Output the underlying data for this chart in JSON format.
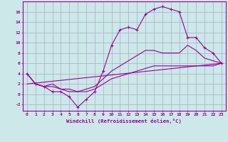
{
  "xlabel": "Windchill (Refroidissement éolien,°C)",
  "background_color": "#cce8e8",
  "grid_color": "#aaaacc",
  "line_color": "#990099",
  "xlim": [
    -0.5,
    23.5
  ],
  "ylim": [
    -3.2,
    18.0
  ],
  "xticks": [
    0,
    1,
    2,
    3,
    4,
    5,
    6,
    7,
    8,
    9,
    10,
    11,
    12,
    13,
    14,
    15,
    16,
    17,
    18,
    19,
    20,
    21,
    22,
    23
  ],
  "yticks": [
    -2,
    0,
    2,
    4,
    6,
    8,
    10,
    12,
    14,
    16
  ],
  "curve1_x": [
    0,
    1,
    2,
    3,
    4,
    5,
    6,
    7,
    8,
    9,
    10,
    11,
    12,
    13,
    14,
    15,
    16,
    17,
    18,
    19,
    20,
    21,
    22,
    23
  ],
  "curve1_y": [
    4,
    2,
    1.5,
    0.5,
    0.5,
    -0.5,
    -2.5,
    -1.0,
    0.5,
    4.5,
    9.5,
    12.5,
    13.0,
    12.5,
    15.5,
    16.5,
    17.0,
    16.5,
    16.0,
    11.0,
    11.0,
    9.0,
    8.0,
    6.0
  ],
  "curve2_x": [
    0,
    1,
    2,
    3,
    4,
    5,
    6,
    7,
    8,
    9,
    10,
    11,
    12,
    13,
    14,
    15,
    16,
    17,
    18,
    19,
    20,
    21,
    22,
    23
  ],
  "curve2_y": [
    4,
    2,
    1.5,
    2.0,
    1.0,
    1.0,
    0.5,
    1.0,
    1.5,
    3.0,
    4.5,
    5.5,
    6.5,
    7.5,
    8.5,
    8.5,
    8.0,
    8.0,
    8.0,
    9.5,
    8.5,
    7.0,
    6.5,
    6.0
  ],
  "curve3_x": [
    0,
    1,
    2,
    3,
    4,
    5,
    6,
    7,
    8,
    9,
    10,
    11,
    12,
    13,
    14,
    15,
    16,
    17,
    18,
    19,
    20,
    21,
    22,
    23
  ],
  "curve3_y": [
    4,
    2,
    1.5,
    1.5,
    1.0,
    0.5,
    0.5,
    0.5,
    1.0,
    2.0,
    3.0,
    3.5,
    4.0,
    4.5,
    5.0,
    5.5,
    5.5,
    5.5,
    5.5,
    5.5,
    5.5,
    5.5,
    5.5,
    6.0
  ],
  "curve4_x": [
    0,
    23
  ],
  "curve4_y": [
    2.0,
    6.0
  ]
}
